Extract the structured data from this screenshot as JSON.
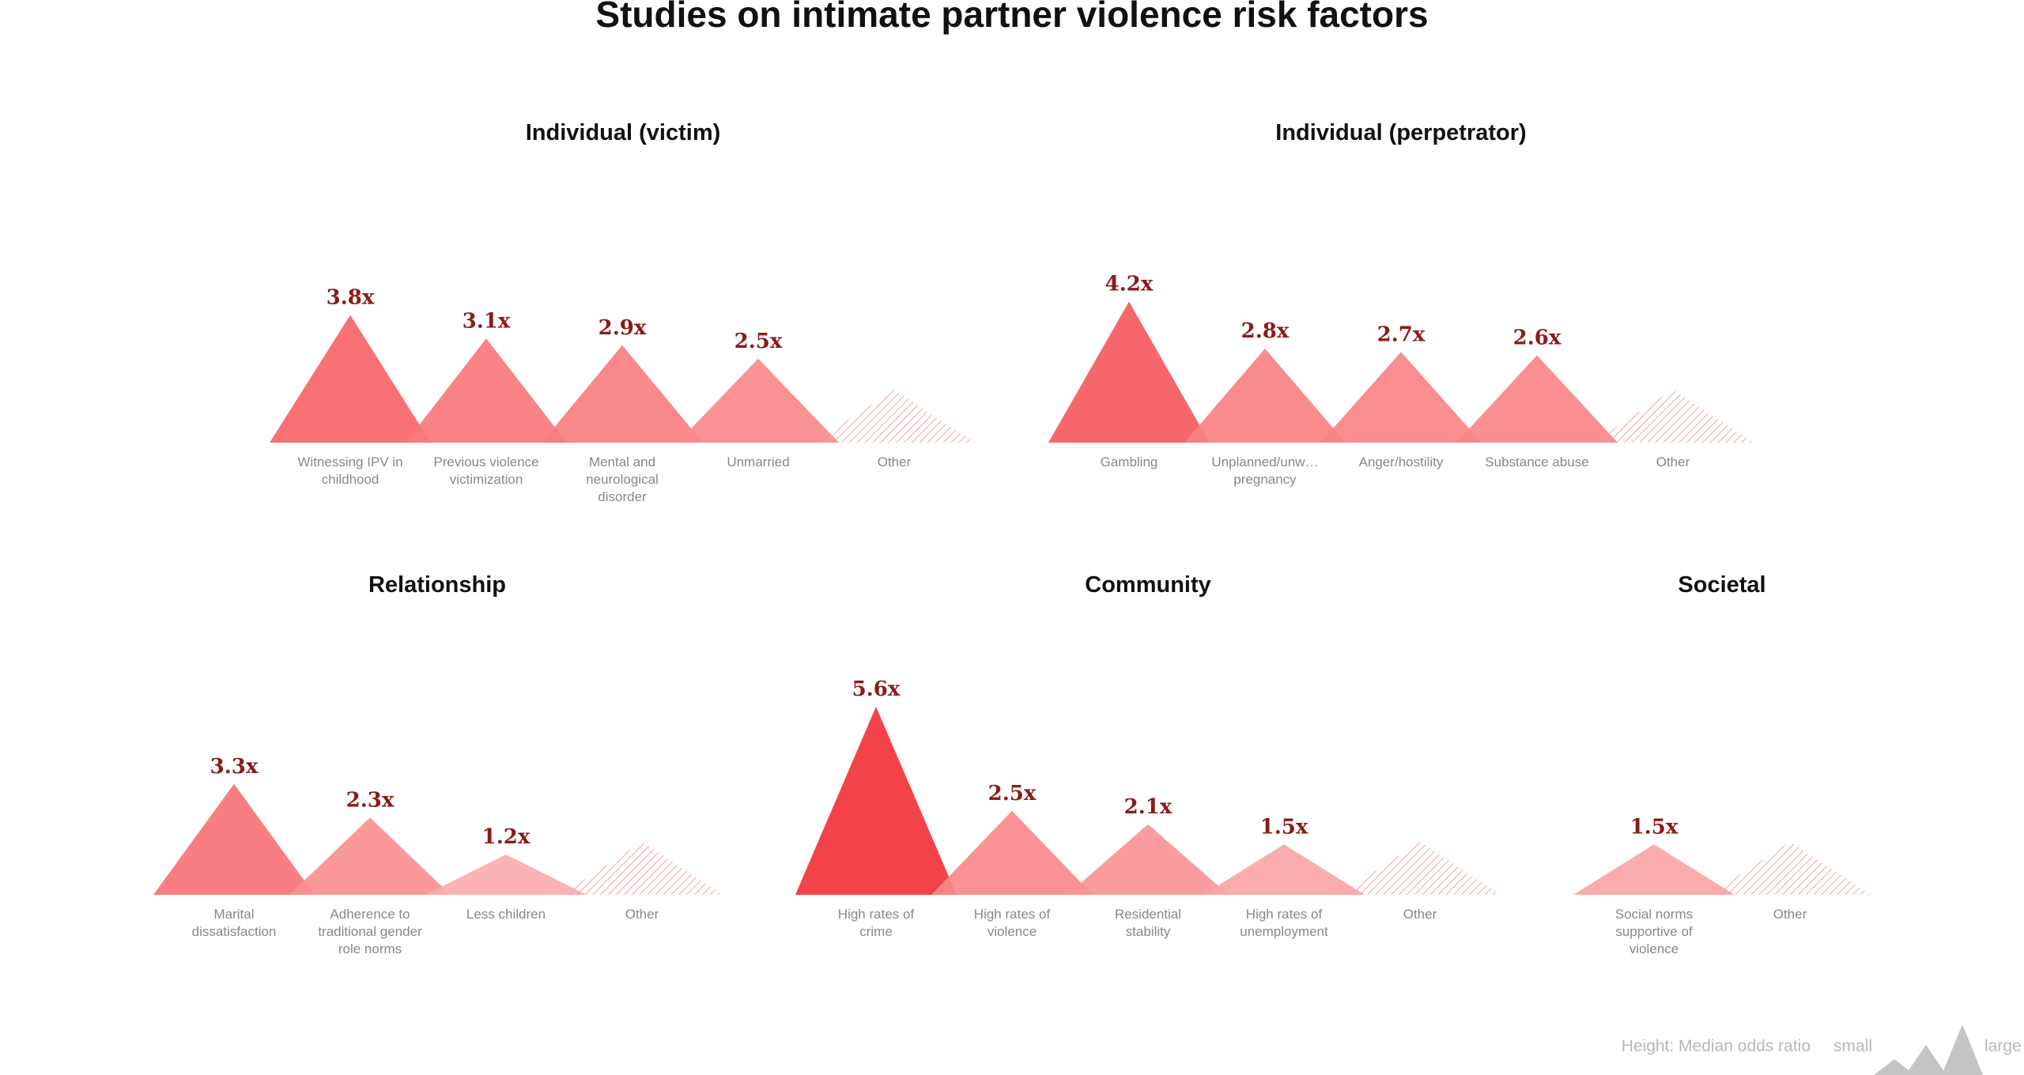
{
  "chart_data": {
    "type": "bar",
    "title": "Studies on intimate partner violence risk factors",
    "value_suffix": "x",
    "colors": {
      "dark": "#f23338",
      "light": "#fcadae",
      "label": "#8b1a1a",
      "other": "#f5a0a3"
    },
    "panels": [
      {
        "title": "Individual (victim)",
        "categories": [
          {
            "label": [
              "Witnessing IPV in",
              "childhood"
            ],
            "value": 3.8,
            "value_label": "3.8x"
          },
          {
            "label": [
              "Previous violence",
              "victimization"
            ],
            "value": 3.1,
            "value_label": "3.1x"
          },
          {
            "label": [
              "Mental and",
              "neurological",
              "disorder"
            ],
            "value": 2.9,
            "value_label": "2.9x"
          },
          {
            "label": [
              "Unmarried"
            ],
            "value": 2.5,
            "value_label": "2.5x"
          },
          {
            "label": [
              "Other"
            ],
            "value": null,
            "value_label": "",
            "other": true
          }
        ]
      },
      {
        "title": "Individual (perpetrator)",
        "categories": [
          {
            "label": [
              "Gambling"
            ],
            "value": 4.2,
            "value_label": "4.2x"
          },
          {
            "label": [
              "Unplanned/unw…",
              "pregnancy"
            ],
            "value": 2.8,
            "value_label": "2.8x"
          },
          {
            "label": [
              "Anger/hostility"
            ],
            "value": 2.7,
            "value_label": "2.7x"
          },
          {
            "label": [
              "Substance abuse"
            ],
            "value": 2.6,
            "value_label": "2.6x"
          },
          {
            "label": [
              "Other"
            ],
            "value": null,
            "value_label": "",
            "other": true
          }
        ]
      },
      {
        "title": "Relationship",
        "categories": [
          {
            "label": [
              "Marital",
              "dissatisfaction"
            ],
            "value": 3.3,
            "value_label": "3.3x"
          },
          {
            "label": [
              "Adherence to",
              "traditional gender",
              "role norms"
            ],
            "value": 2.3,
            "value_label": "2.3x"
          },
          {
            "label": [
              "Less children"
            ],
            "value": 1.2,
            "value_label": "1.2x"
          },
          {
            "label": [
              "Other"
            ],
            "value": null,
            "value_label": "",
            "other": true
          }
        ]
      },
      {
        "title": "Community",
        "categories": [
          {
            "label": [
              "High rates of",
              "crime"
            ],
            "value": 5.6,
            "value_label": "5.6x"
          },
          {
            "label": [
              "High rates of",
              "violence"
            ],
            "value": 2.5,
            "value_label": "2.5x"
          },
          {
            "label": [
              "Residential",
              "stability"
            ],
            "value": 2.1,
            "value_label": "2.1x"
          },
          {
            "label": [
              "High rates of",
              "unemployment"
            ],
            "value": 1.5,
            "value_label": "1.5x"
          },
          {
            "label": [
              "Other"
            ],
            "value": null,
            "value_label": "",
            "other": true
          }
        ]
      },
      {
        "title": "Societal",
        "categories": [
          {
            "label": [
              "Social norms",
              "supportive of",
              "violence"
            ],
            "value": 1.5,
            "value_label": "1.5x"
          },
          {
            "label": [
              "Other"
            ],
            "value": null,
            "value_label": "",
            "other": true
          }
        ]
      }
    ],
    "legend": {
      "height_label": "Height: Median odds ratio",
      "small_label": "small",
      "large_label": "large"
    }
  }
}
